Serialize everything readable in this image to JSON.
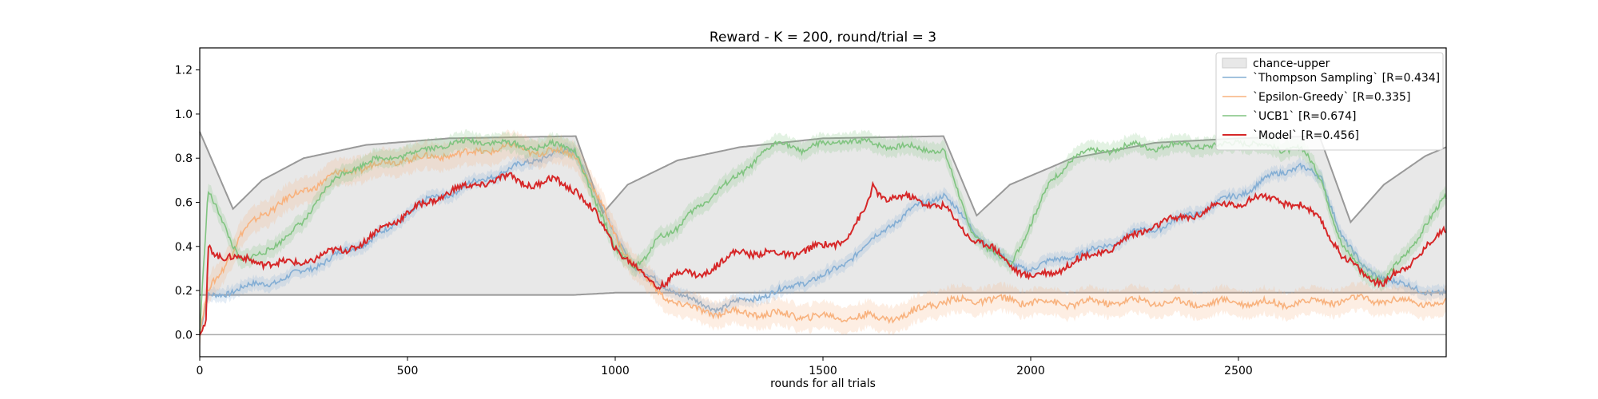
{
  "chart_data": {
    "type": "line",
    "title": "Reward - K = 200, round/trial = 3",
    "xlabel": "rounds for all trials",
    "ylabel": "",
    "xlim": [
      0,
      3000
    ],
    "ylim": [
      -0.1,
      1.3
    ],
    "xticks": [
      0,
      500,
      1000,
      1500,
      2000,
      2500
    ],
    "yticks": [
      0.0,
      0.2,
      0.4,
      0.6,
      0.8,
      1.0,
      1.2
    ],
    "grid": false,
    "legend_position": "top-right",
    "band": {
      "name": "chance-upper",
      "color": "#e8e8e8",
      "edge_color": "#999999",
      "upper": [
        [
          0,
          0.92
        ],
        [
          80,
          0.57
        ],
        [
          150,
          0.7
        ],
        [
          250,
          0.8
        ],
        [
          400,
          0.86
        ],
        [
          600,
          0.89
        ],
        [
          905,
          0.9
        ],
        [
          970,
          0.55
        ],
        [
          1030,
          0.68
        ],
        [
          1150,
          0.79
        ],
        [
          1300,
          0.85
        ],
        [
          1500,
          0.89
        ],
        [
          1790,
          0.9
        ],
        [
          1870,
          0.54
        ],
        [
          1950,
          0.68
        ],
        [
          2100,
          0.8
        ],
        [
          2300,
          0.87
        ],
        [
          2500,
          0.89
        ],
        [
          2695,
          0.9
        ],
        [
          2770,
          0.51
        ],
        [
          2850,
          0.68
        ],
        [
          2950,
          0.81
        ],
        [
          3000,
          0.85
        ]
      ],
      "lower": [
        [
          0,
          0.18
        ],
        [
          900,
          0.18
        ],
        [
          1000,
          0.19
        ],
        [
          3000,
          0.19
        ]
      ]
    },
    "series": [
      {
        "name": "`Thompson Sampling` [R=0.434]",
        "color": "#84aed4",
        "values": [
          [
            0,
            0.0
          ],
          [
            20,
            0.17
          ],
          [
            60,
            0.19
          ],
          [
            120,
            0.22
          ],
          [
            200,
            0.25
          ],
          [
            250,
            0.29
          ],
          [
            300,
            0.33
          ],
          [
            350,
            0.38
          ],
          [
            400,
            0.42
          ],
          [
            450,
            0.47
          ],
          [
            500,
            0.55
          ],
          [
            550,
            0.61
          ],
          [
            600,
            0.64
          ],
          [
            650,
            0.68
          ],
          [
            700,
            0.72
          ],
          [
            750,
            0.75
          ],
          [
            800,
            0.79
          ],
          [
            850,
            0.82
          ],
          [
            905,
            0.83
          ],
          [
            950,
            0.65
          ],
          [
            1000,
            0.45
          ],
          [
            1050,
            0.3
          ],
          [
            1100,
            0.24
          ],
          [
            1150,
            0.19
          ],
          [
            1200,
            0.14
          ],
          [
            1250,
            0.12
          ],
          [
            1300,
            0.15
          ],
          [
            1400,
            0.2
          ],
          [
            1450,
            0.24
          ],
          [
            1500,
            0.26
          ],
          [
            1550,
            0.32
          ],
          [
            1600,
            0.4
          ],
          [
            1650,
            0.48
          ],
          [
            1700,
            0.55
          ],
          [
            1790,
            0.64
          ],
          [
            1850,
            0.5
          ],
          [
            1900,
            0.4
          ],
          [
            1950,
            0.32
          ],
          [
            2000,
            0.3
          ],
          [
            2050,
            0.33
          ],
          [
            2100,
            0.36
          ],
          [
            2150,
            0.38
          ],
          [
            2200,
            0.42
          ],
          [
            2250,
            0.46
          ],
          [
            2300,
            0.48
          ],
          [
            2350,
            0.52
          ],
          [
            2400,
            0.55
          ],
          [
            2450,
            0.6
          ],
          [
            2500,
            0.63
          ],
          [
            2550,
            0.69
          ],
          [
            2600,
            0.73
          ],
          [
            2650,
            0.77
          ],
          [
            2700,
            0.7
          ],
          [
            2750,
            0.45
          ],
          [
            2800,
            0.3
          ],
          [
            2850,
            0.26
          ],
          [
            2900,
            0.22
          ],
          [
            2950,
            0.2
          ],
          [
            3000,
            0.18
          ]
        ]
      },
      {
        "name": "`Epsilon-Greedy` [R=0.335]",
        "color": "#f8b27e",
        "values": [
          [
            0,
            0.0
          ],
          [
            20,
            0.2
          ],
          [
            60,
            0.32
          ],
          [
            100,
            0.45
          ],
          [
            150,
            0.55
          ],
          [
            200,
            0.6
          ],
          [
            250,
            0.65
          ],
          [
            300,
            0.7
          ],
          [
            350,
            0.74
          ],
          [
            400,
            0.76
          ],
          [
            450,
            0.78
          ],
          [
            500,
            0.8
          ],
          [
            550,
            0.8
          ],
          [
            600,
            0.82
          ],
          [
            650,
            0.82
          ],
          [
            700,
            0.84
          ],
          [
            750,
            0.85
          ],
          [
            800,
            0.83
          ],
          [
            850,
            0.83
          ],
          [
            905,
            0.82
          ],
          [
            950,
            0.65
          ],
          [
            1000,
            0.45
          ],
          [
            1050,
            0.3
          ],
          [
            1100,
            0.2
          ],
          [
            1150,
            0.14
          ],
          [
            1200,
            0.11
          ],
          [
            1250,
            0.1
          ],
          [
            1300,
            0.1
          ],
          [
            1400,
            0.09
          ],
          [
            1500,
            0.08
          ],
          [
            1600,
            0.08
          ],
          [
            1700,
            0.08
          ],
          [
            1750,
            0.14
          ],
          [
            1800,
            0.15
          ],
          [
            1900,
            0.16
          ],
          [
            2000,
            0.15
          ],
          [
            2100,
            0.14
          ],
          [
            2200,
            0.15
          ],
          [
            2300,
            0.15
          ],
          [
            2400,
            0.14
          ],
          [
            2500,
            0.15
          ],
          [
            2600,
            0.14
          ],
          [
            2700,
            0.15
          ],
          [
            2800,
            0.16
          ],
          [
            2900,
            0.15
          ],
          [
            3000,
            0.14
          ]
        ]
      },
      {
        "name": "`UCB1` [R=0.674]",
        "color": "#80c480",
        "values": [
          [
            0,
            0.0
          ],
          [
            20,
            0.65
          ],
          [
            50,
            0.55
          ],
          [
            80,
            0.4
          ],
          [
            100,
            0.32
          ],
          [
            150,
            0.38
          ],
          [
            200,
            0.42
          ],
          [
            250,
            0.52
          ],
          [
            300,
            0.65
          ],
          [
            350,
            0.74
          ],
          [
            400,
            0.78
          ],
          [
            450,
            0.8
          ],
          [
            500,
            0.82
          ],
          [
            550,
            0.84
          ],
          [
            600,
            0.87
          ],
          [
            650,
            0.87
          ],
          [
            700,
            0.88
          ],
          [
            750,
            0.86
          ],
          [
            800,
            0.85
          ],
          [
            850,
            0.86
          ],
          [
            905,
            0.84
          ],
          [
            950,
            0.6
          ],
          [
            1000,
            0.4
          ],
          [
            1050,
            0.3
          ],
          [
            1080,
            0.35
          ],
          [
            1100,
            0.45
          ],
          [
            1150,
            0.48
          ],
          [
            1200,
            0.58
          ],
          [
            1250,
            0.66
          ],
          [
            1300,
            0.72
          ],
          [
            1350,
            0.82
          ],
          [
            1400,
            0.87
          ],
          [
            1450,
            0.84
          ],
          [
            1500,
            0.86
          ],
          [
            1550,
            0.88
          ],
          [
            1600,
            0.87
          ],
          [
            1650,
            0.86
          ],
          [
            1700,
            0.85
          ],
          [
            1750,
            0.84
          ],
          [
            1790,
            0.84
          ],
          [
            1850,
            0.5
          ],
          [
            1900,
            0.38
          ],
          [
            1950,
            0.32
          ],
          [
            2000,
            0.5
          ],
          [
            2050,
            0.7
          ],
          [
            2100,
            0.8
          ],
          [
            2150,
            0.83
          ],
          [
            2200,
            0.84
          ],
          [
            2250,
            0.86
          ],
          [
            2300,
            0.85
          ],
          [
            2350,
            0.86
          ],
          [
            2400,
            0.86
          ],
          [
            2450,
            0.85
          ],
          [
            2500,
            0.88
          ],
          [
            2550,
            0.86
          ],
          [
            2600,
            0.84
          ],
          [
            2650,
            0.85
          ],
          [
            2700,
            0.7
          ],
          [
            2750,
            0.4
          ],
          [
            2800,
            0.28
          ],
          [
            2850,
            0.25
          ],
          [
            2900,
            0.35
          ],
          [
            2950,
            0.5
          ],
          [
            3000,
            0.62
          ]
        ]
      },
      {
        "name": "`Model` [R=0.456]",
        "color": "#d62728",
        "values": [
          [
            0,
            0.0
          ],
          [
            15,
            0.05
          ],
          [
            20,
            0.4
          ],
          [
            50,
            0.36
          ],
          [
            100,
            0.34
          ],
          [
            150,
            0.33
          ],
          [
            200,
            0.32
          ],
          [
            250,
            0.33
          ],
          [
            300,
            0.36
          ],
          [
            350,
            0.39
          ],
          [
            400,
            0.42
          ],
          [
            450,
            0.5
          ],
          [
            500,
            0.55
          ],
          [
            550,
            0.6
          ],
          [
            600,
            0.65
          ],
          [
            650,
            0.67
          ],
          [
            700,
            0.7
          ],
          [
            750,
            0.71
          ],
          [
            800,
            0.68
          ],
          [
            850,
            0.7
          ],
          [
            905,
            0.66
          ],
          [
            950,
            0.55
          ],
          [
            1000,
            0.4
          ],
          [
            1050,
            0.3
          ],
          [
            1100,
            0.22
          ],
          [
            1150,
            0.28
          ],
          [
            1200,
            0.27
          ],
          [
            1250,
            0.32
          ],
          [
            1300,
            0.38
          ],
          [
            1350,
            0.37
          ],
          [
            1400,
            0.36
          ],
          [
            1450,
            0.38
          ],
          [
            1500,
            0.4
          ],
          [
            1550,
            0.43
          ],
          [
            1600,
            0.55
          ],
          [
            1620,
            0.67
          ],
          [
            1650,
            0.62
          ],
          [
            1700,
            0.62
          ],
          [
            1750,
            0.6
          ],
          [
            1790,
            0.58
          ],
          [
            1850,
            0.45
          ],
          [
            1900,
            0.4
          ],
          [
            1950,
            0.32
          ],
          [
            2000,
            0.26
          ],
          [
            2050,
            0.28
          ],
          [
            2100,
            0.33
          ],
          [
            2150,
            0.36
          ],
          [
            2200,
            0.4
          ],
          [
            2250,
            0.45
          ],
          [
            2300,
            0.5
          ],
          [
            2350,
            0.52
          ],
          [
            2400,
            0.55
          ],
          [
            2450,
            0.58
          ],
          [
            2500,
            0.6
          ],
          [
            2550,
            0.62
          ],
          [
            2600,
            0.61
          ],
          [
            2650,
            0.58
          ],
          [
            2700,
            0.52
          ],
          [
            2750,
            0.35
          ],
          [
            2800,
            0.28
          ],
          [
            2850,
            0.23
          ],
          [
            2900,
            0.3
          ],
          [
            2950,
            0.4
          ],
          [
            3000,
            0.47
          ]
        ]
      }
    ]
  }
}
